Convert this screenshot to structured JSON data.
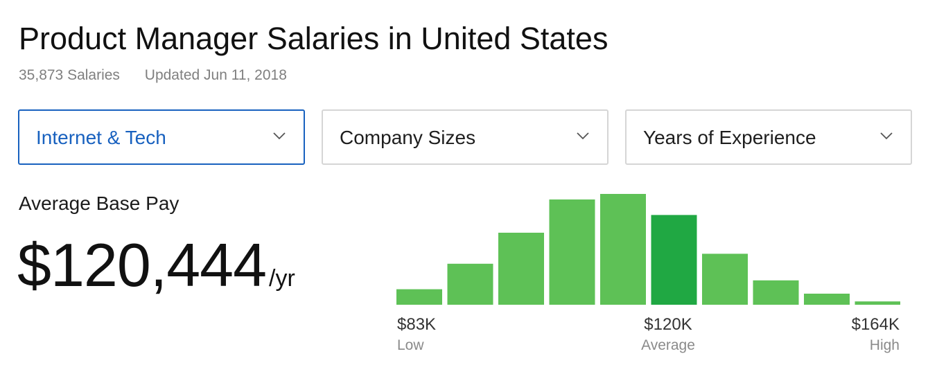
{
  "header": {
    "title": "Product Manager Salaries in United States",
    "salary_count": "35,873 Salaries",
    "updated": "Updated Jun 11, 2018"
  },
  "filters": [
    {
      "label": "Internet & Tech",
      "active": true,
      "icon": "chevron-down-icon"
    },
    {
      "label": "Company Sizes",
      "active": false,
      "icon": "chevron-down-icon"
    },
    {
      "label": "Years of Experience",
      "active": false,
      "icon": "chevron-down-icon"
    }
  ],
  "pay": {
    "label": "Average Base Pay",
    "amount": "$120,444",
    "unit": "/yr"
  },
  "chart_data": {
    "type": "bar",
    "values": [
      0.14,
      0.37,
      0.65,
      0.95,
      1.0,
      0.81,
      0.46,
      0.22,
      0.1,
      0.03
    ],
    "highlight_index": 5,
    "ylim": [
      0,
      1
    ],
    "colors": {
      "bar": "#5ec156",
      "highlight": "#20a843"
    },
    "axis": {
      "low_value": "$83K",
      "low_label": "Low",
      "average_value": "$120K",
      "average_label": "Average",
      "high_value": "$164K",
      "high_label": "High"
    }
  }
}
